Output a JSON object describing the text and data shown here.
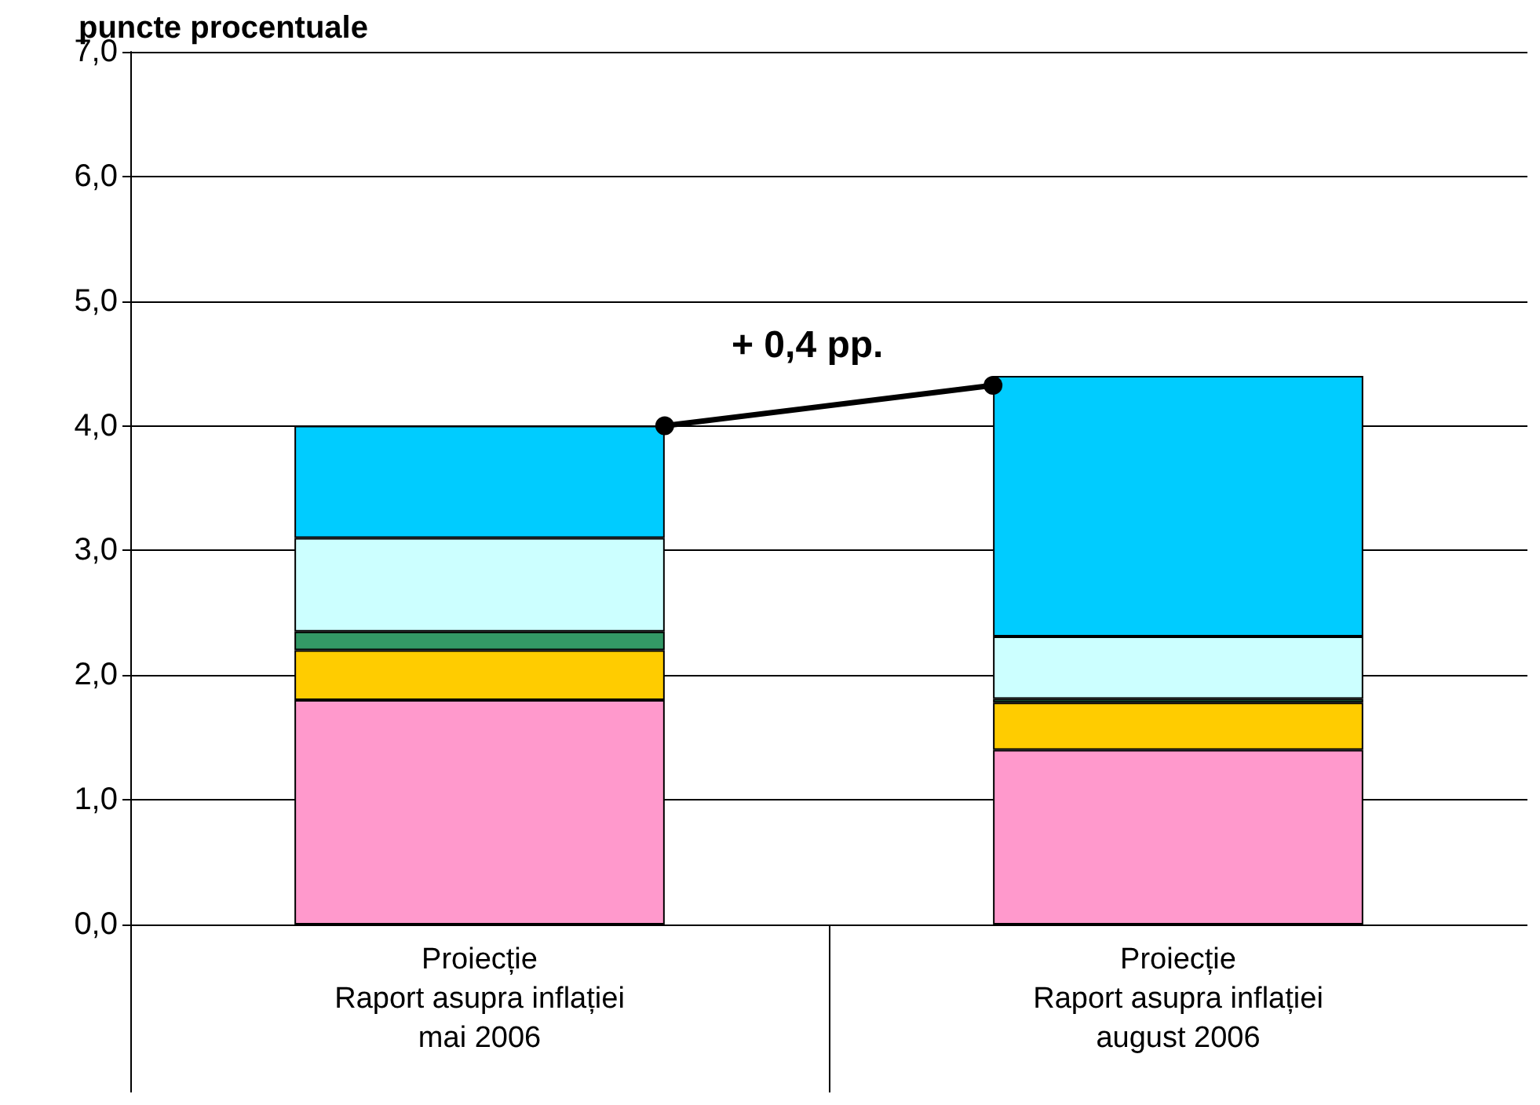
{
  "chart_data": {
    "type": "bar",
    "ylabel": "puncte procentuale",
    "stacked": true,
    "categories": [
      "Proiecție\nRaport asupra inflației\nmai 2006",
      "Proiecție\nRaport asupra inflației\naugust 2006"
    ],
    "series": [
      {
        "color": "#ff99cc",
        "values": [
          1.8,
          1.4
        ]
      },
      {
        "color": "#ffcc00",
        "values": [
          0.4,
          0.38
        ]
      },
      {
        "color": "#339966",
        "values": [
          0.15,
          0.03
        ]
      },
      {
        "color": "#ccffff",
        "values": [
          0.75,
          0.5
        ]
      },
      {
        "color": "#00ccff",
        "values": [
          0.9,
          2.09
        ]
      }
    ],
    "annotations": [
      "+ 0,4 pp."
    ],
    "ylim": [
      0,
      7
    ],
    "yticks": [
      {
        "value": 0,
        "label": "0,0"
      },
      {
        "value": 1,
        "label": "1,0"
      },
      {
        "value": 2,
        "label": "2,0"
      },
      {
        "value": 3,
        "label": "3,0"
      },
      {
        "value": 4,
        "label": "4,0"
      },
      {
        "value": 5,
        "label": "5,0"
      },
      {
        "value": 6,
        "label": "6,0"
      },
      {
        "value": 7,
        "label": "7,0"
      }
    ],
    "grid": "y"
  }
}
